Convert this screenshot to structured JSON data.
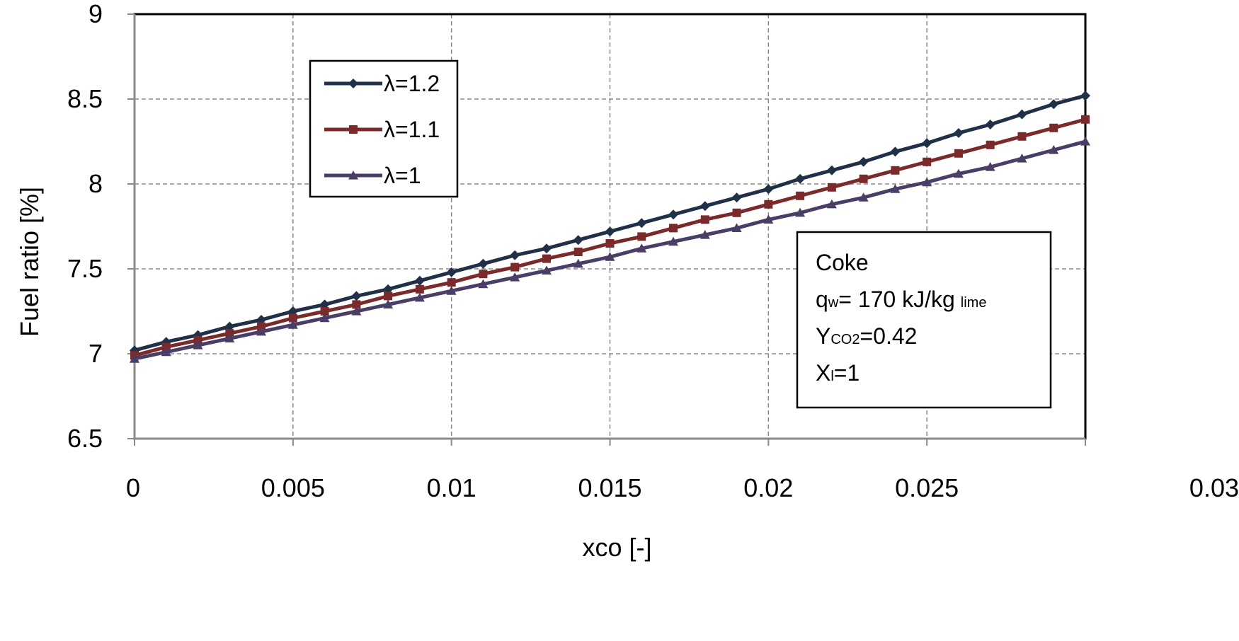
{
  "chart_data": {
    "type": "line",
    "xlabel": "xco  [-]",
    "ylabel": "Fuel ratio [%]",
    "xlim": [
      0,
      0.03
    ],
    "ylim": [
      6.5,
      9
    ],
    "x_ticks": [
      0,
      0.005,
      0.01,
      0.015,
      0.02,
      0.025,
      0.03
    ],
    "y_ticks": [
      6.5,
      7,
      7.5,
      8,
      8.5,
      9
    ],
    "x_tick_labels": [
      "0",
      "0.005",
      "0.01",
      "0.015",
      "0.02",
      "0.025",
      "0.03"
    ],
    "y_tick_labels": [
      "6.5",
      "7",
      "7.5",
      "8",
      "8.5",
      "9"
    ],
    "grid": true,
    "legend_position": "top-left",
    "x": [
      0,
      0.001,
      0.002,
      0.003,
      0.004,
      0.005,
      0.006,
      0.007,
      0.008,
      0.009,
      0.01,
      0.011,
      0.012,
      0.013,
      0.014,
      0.015,
      0.016,
      0.017,
      0.018,
      0.019,
      0.02,
      0.021,
      0.022,
      0.023,
      0.024,
      0.025,
      0.026,
      0.027,
      0.028,
      0.029,
      0.03
    ],
    "series": [
      {
        "name": "λ=1.2",
        "color": "#1f3048",
        "marker": "diamond",
        "values": [
          7.02,
          7.07,
          7.11,
          7.16,
          7.2,
          7.25,
          7.29,
          7.34,
          7.38,
          7.43,
          7.48,
          7.53,
          7.58,
          7.62,
          7.67,
          7.72,
          7.77,
          7.82,
          7.87,
          7.92,
          7.97,
          8.03,
          8.08,
          8.13,
          8.19,
          8.24,
          8.3,
          8.35,
          8.41,
          8.47,
          8.52
        ]
      },
      {
        "name": "λ=1.1",
        "color": "#7a2a2a",
        "marker": "square",
        "values": [
          6.99,
          7.04,
          7.08,
          7.12,
          7.16,
          7.21,
          7.25,
          7.29,
          7.34,
          7.38,
          7.42,
          7.47,
          7.51,
          7.56,
          7.6,
          7.65,
          7.69,
          7.74,
          7.79,
          7.83,
          7.88,
          7.93,
          7.98,
          8.03,
          8.08,
          8.13,
          8.18,
          8.23,
          8.28,
          8.33,
          8.38
        ]
      },
      {
        "name": "λ=1",
        "color": "#4a3d66",
        "marker": "triangle",
        "values": [
          6.97,
          7.01,
          7.05,
          7.09,
          7.13,
          7.17,
          7.21,
          7.25,
          7.29,
          7.33,
          7.37,
          7.41,
          7.45,
          7.49,
          7.53,
          7.57,
          7.62,
          7.66,
          7.7,
          7.74,
          7.79,
          7.83,
          7.88,
          7.92,
          7.97,
          8.01,
          8.06,
          8.1,
          8.15,
          8.2,
          8.25
        ]
      }
    ],
    "annotation": {
      "title": "Coke",
      "q_main": "q",
      "q_sub": "w",
      "q_value": "= 170 kJ/kg",
      "q_unit_sub": "lime",
      "y_main": "Y",
      "y_sub": "CO2",
      "y_value": "=0.42",
      "x_main": "X",
      "x_sub": "l",
      "x_value": "=1"
    }
  }
}
